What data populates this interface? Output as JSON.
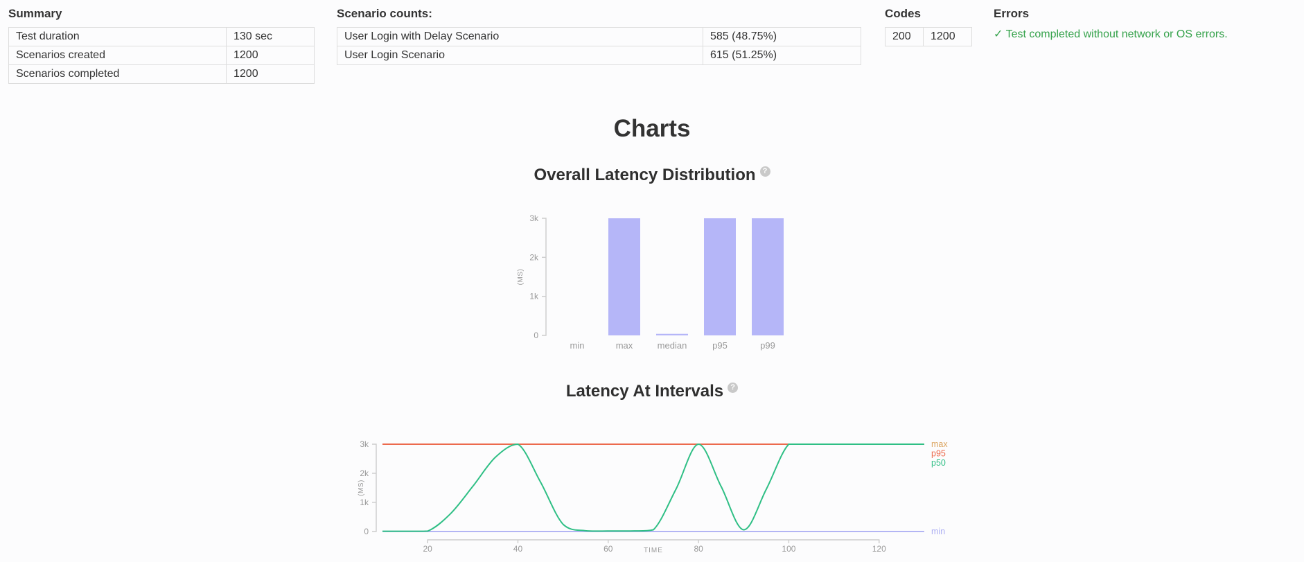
{
  "summary": {
    "title": "Summary",
    "rows": [
      {
        "label": "Test duration",
        "value": "130 sec"
      },
      {
        "label": "Scenarios created",
        "value": "1200"
      },
      {
        "label": "Scenarios completed",
        "value": "1200"
      }
    ]
  },
  "scenario_counts": {
    "title": "Scenario counts:",
    "rows": [
      {
        "label": "User Login with Delay Scenario",
        "value": "585 (48.75%)"
      },
      {
        "label": "User Login Scenario",
        "value": "615 (51.25%)"
      }
    ]
  },
  "codes": {
    "title": "Codes",
    "rows": [
      {
        "code": "200",
        "count": "1200"
      }
    ],
    "code_color": "#4e8ecb"
  },
  "errors": {
    "title": "Errors",
    "message": "✓ Test completed without network or OS errors.",
    "color": "#35a24b"
  },
  "charts_heading": "Charts",
  "ui": {
    "help_glyph": "?"
  },
  "chart_data": [
    {
      "type": "bar",
      "title": "Overall Latency Distribution",
      "xlabel": "",
      "ylabel": "(MS)",
      "categories": [
        "min",
        "max",
        "median",
        "p95",
        "p99"
      ],
      "values": [
        0,
        3000,
        40,
        3000,
        3000
      ],
      "ylim": [
        0,
        3000
      ],
      "yticks": {
        "labels": [
          "0",
          "1k",
          "2k",
          "3k"
        ],
        "values": [
          0,
          1000,
          2000,
          3000
        ]
      },
      "bar_color": "#b5b6f8",
      "grid": false,
      "legend_position": "none"
    },
    {
      "type": "line",
      "title": "Latency At Intervals",
      "xlabel": "TIME",
      "ylabel": "(MS)",
      "xlim": [
        10,
        130
      ],
      "ylim": [
        0,
        3000
      ],
      "xticks": [
        20,
        40,
        60,
        80,
        100,
        120
      ],
      "yticks": {
        "labels": [
          "0",
          "1k",
          "2k",
          "3k"
        ],
        "values": [
          0,
          1000,
          2000,
          3000
        ]
      },
      "grid": false,
      "legend_position": "line-end-right",
      "legend_order": [
        "max",
        "p95",
        "p50",
        "min"
      ],
      "series": [
        {
          "name": "max",
          "color": "#dba45f",
          "x": [
            10,
            130
          ],
          "y": [
            3000,
            3000
          ]
        },
        {
          "name": "p95",
          "color": "#ec6a4d",
          "x": [
            10,
            130
          ],
          "y": [
            3000,
            3000
          ]
        },
        {
          "name": "min",
          "color": "#abadf3",
          "x": [
            10,
            130
          ],
          "y": [
            0,
            0
          ]
        },
        {
          "name": "p50",
          "color": "#2fbf85",
          "x": [
            10,
            15,
            20,
            25,
            30,
            35,
            40,
            45,
            50,
            55,
            60,
            65,
            70,
            75,
            80,
            85,
            90,
            95,
            100,
            105,
            110,
            115,
            120,
            125,
            130
          ],
          "y": [
            10,
            10,
            15,
            600,
            1550,
            2550,
            3000,
            1700,
            250,
            25,
            20,
            20,
            60,
            1450,
            3000,
            1550,
            60,
            1450,
            3000,
            3000,
            3000,
            3000,
            3000,
            3000,
            3000
          ]
        }
      ]
    }
  ]
}
